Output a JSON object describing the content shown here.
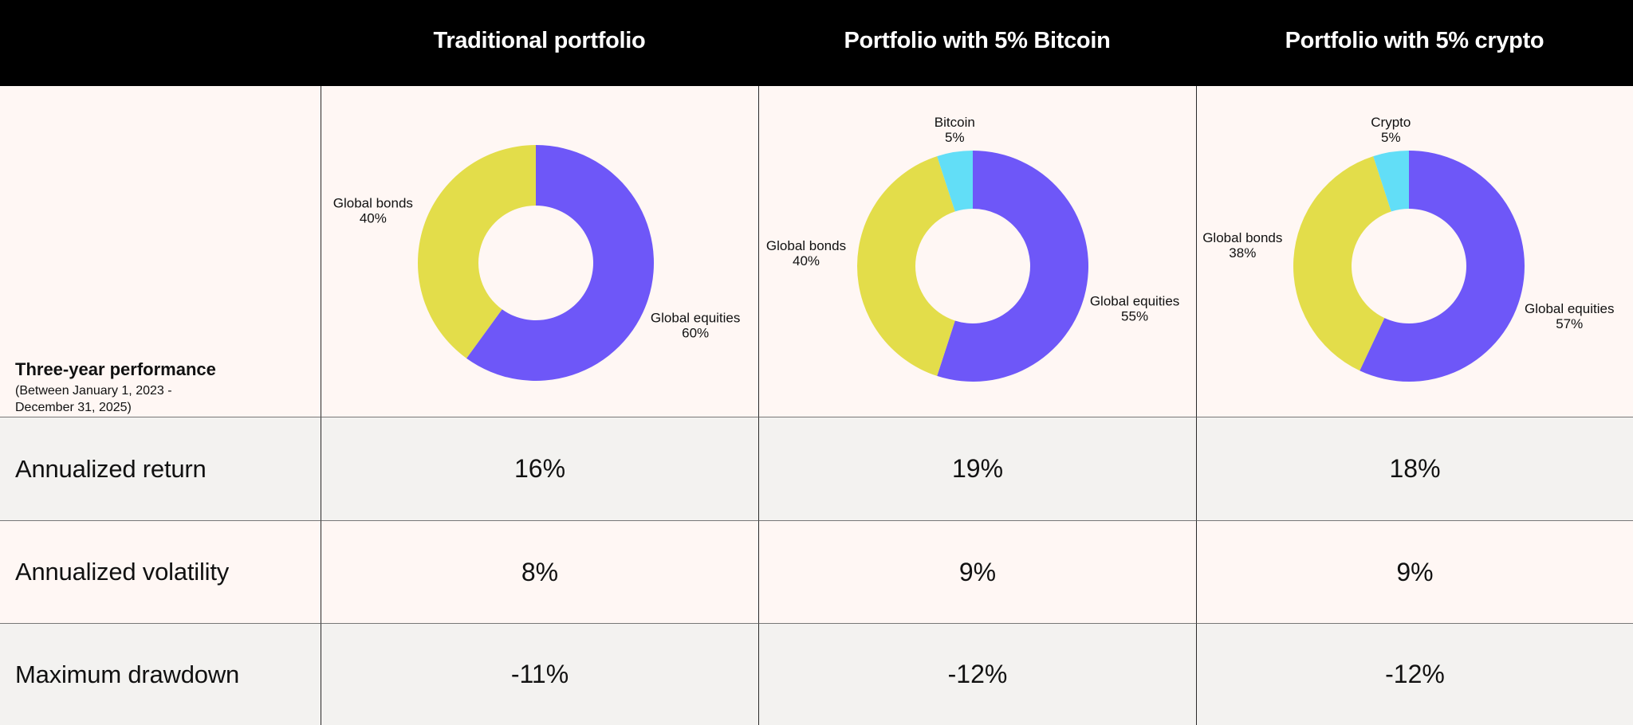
{
  "headers": [
    "",
    "Traditional portfolio",
    "Portfolio with 5% Bitcoin",
    "Portfolio with 5% crypto"
  ],
  "performance": {
    "title": "Three-year performance",
    "subtitle": "(Between January 1, 2023 - December 31, 2025)"
  },
  "colors": {
    "equities": "#6e57f8",
    "bonds": "#e3dd4a",
    "crypto": "#62def7",
    "header_bg": "#000000",
    "row_alt": "#f3f2f0",
    "row_base": "#fff7f4"
  },
  "chart_data": [
    {
      "type": "pie",
      "donut": true,
      "title": "Traditional portfolio",
      "slices": [
        {
          "name": "Global equities",
          "label": "60%",
          "value": 60
        },
        {
          "name": "Global bonds",
          "label": "40%",
          "value": 40
        }
      ]
    },
    {
      "type": "pie",
      "donut": true,
      "title": "Portfolio with 5% Bitcoin",
      "slices": [
        {
          "name": "Global equities",
          "label": "55%",
          "value": 55
        },
        {
          "name": "Global bonds",
          "label": "40%",
          "value": 40
        },
        {
          "name": "Bitcoin",
          "label": "5%",
          "value": 5
        }
      ]
    },
    {
      "type": "pie",
      "donut": true,
      "title": "Portfolio with 5% crypto",
      "slices": [
        {
          "name": "Global equities",
          "label": "57%",
          "value": 57
        },
        {
          "name": "Global bonds",
          "label": "38%",
          "value": 38
        },
        {
          "name": "Crypto",
          "label": "5%",
          "value": 5
        }
      ]
    }
  ],
  "rows": [
    {
      "label": "Annualized return",
      "values": [
        "16%",
        "19%",
        "18%"
      ]
    },
    {
      "label": "Annualized volatility",
      "values": [
        "8%",
        "9%",
        "9%"
      ]
    },
    {
      "label": "Maximum drawdown",
      "values": [
        "-11%",
        "-12%",
        "-12%"
      ]
    }
  ]
}
